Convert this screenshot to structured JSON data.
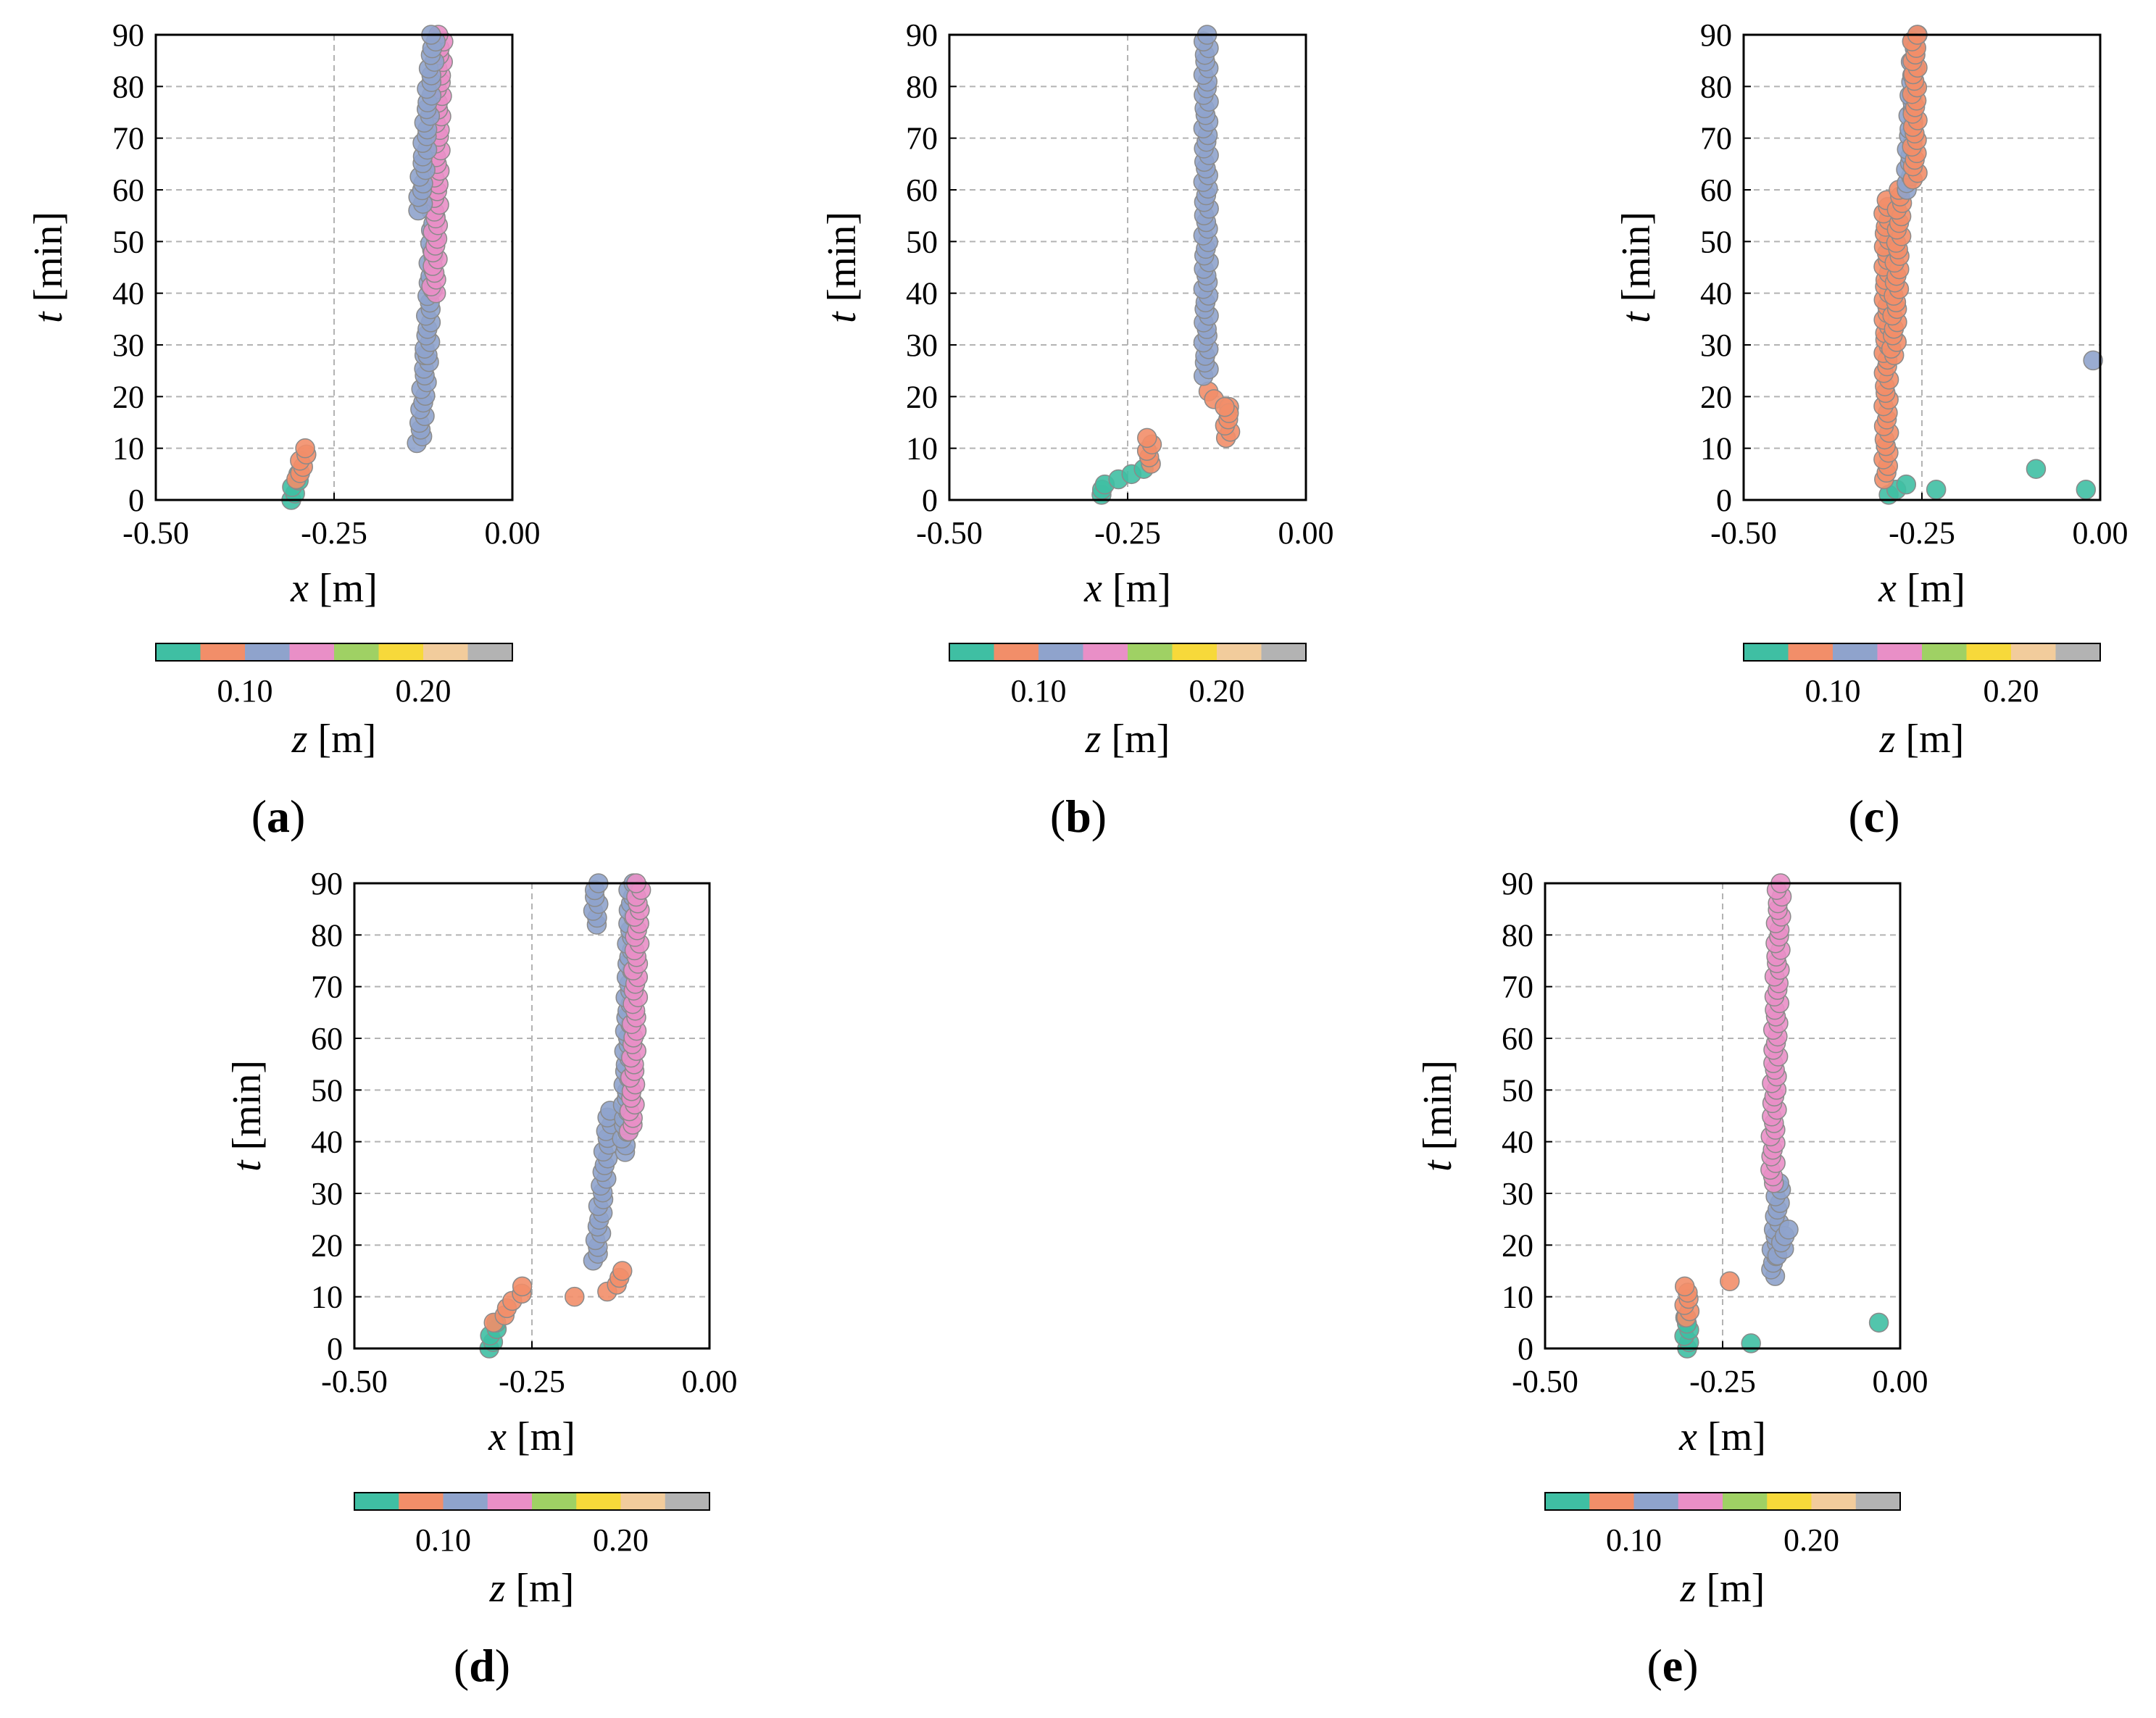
{
  "colorbar": {
    "label_var": "z",
    "label_unit": " [m]",
    "tick_labels": [
      "0.10",
      "0.20"
    ],
    "tick_values": [
      0.1,
      0.2
    ],
    "range": [
      0.05,
      0.25
    ],
    "colors": [
      "#3fbfa3",
      "#f28e69",
      "#8fa3cc",
      "#e98fc7",
      "#9fd164",
      "#f7d93a",
      "#f2cc9c",
      "#b3b3b3"
    ]
  },
  "chart_data": [
    {
      "panel": "a",
      "caption_letter": "a",
      "type": "scatter",
      "xlabel_var": "x",
      "xlabel_unit": " [m]",
      "ylabel_var": "t",
      "ylabel_unit": " [min]",
      "xlim": [
        -0.5,
        0.0
      ],
      "ylim": [
        0,
        90
      ],
      "xticks": [
        "-0.50",
        "-0.25",
        "0.00"
      ],
      "yticks": [
        "0",
        "10",
        "20",
        "30",
        "40",
        "50",
        "60",
        "70",
        "80",
        "90"
      ],
      "grid": true,
      "segments": [
        {
          "x_start": -0.31,
          "x_end": -0.3,
          "t_start": 0,
          "t_end": 5,
          "z_class": 0
        },
        {
          "x_start": -0.3,
          "x_end": -0.29,
          "t_start": 4,
          "t_end": 10,
          "z_class": 1
        },
        {
          "x_start": -0.13,
          "x_end": -0.12,
          "t_start": 11,
          "t_end": 28,
          "z_class": 2
        },
        {
          "x_start": -0.12,
          "x_end": -0.11,
          "t_start": 28,
          "t_end": 56,
          "z_class": 2
        },
        {
          "x_start": -0.11,
          "x_end": -0.1,
          "t_start": 40,
          "t_end": 90,
          "z_class": 3
        },
        {
          "x_start": -0.13,
          "x_end": -0.11,
          "t_start": 56,
          "t_end": 90,
          "z_class": 2
        }
      ]
    },
    {
      "panel": "b",
      "caption_letter": "b",
      "type": "scatter",
      "xlabel_var": "x",
      "xlabel_unit": " [m]",
      "ylabel_var": "t",
      "ylabel_unit": " [min]",
      "xlim": [
        -0.5,
        0.0
      ],
      "ylim": [
        0,
        90
      ],
      "xticks": [
        "-0.50",
        "-0.25",
        "0.00"
      ],
      "yticks": [
        "0",
        "10",
        "20",
        "30",
        "40",
        "50",
        "60",
        "70",
        "80",
        "90"
      ],
      "grid": true,
      "segments": [
        {
          "x_start": -0.29,
          "x_end": -0.28,
          "t_start": 1,
          "t_end": 3,
          "z_class": 0
        },
        {
          "x_start": -0.26,
          "x_end": -0.23,
          "t_start": 4,
          "t_end": 6,
          "z_class": 0
        },
        {
          "x_start": -0.22,
          "x_end": -0.22,
          "t_start": 7,
          "t_end": 12,
          "z_class": 1
        },
        {
          "x_start": -0.14,
          "x_end": -0.11,
          "t_start": 21,
          "t_end": 18,
          "z_class": 1
        },
        {
          "x_start": -0.11,
          "x_end": -0.11,
          "t_start": 12,
          "t_end": 18,
          "z_class": 1
        },
        {
          "x_start": -0.14,
          "x_end": -0.14,
          "t_start": 24,
          "t_end": 90,
          "z_class": 2
        }
      ]
    },
    {
      "panel": "c",
      "caption_letter": "c",
      "type": "scatter",
      "xlabel_var": "x",
      "xlabel_unit": " [m]",
      "ylabel_var": "t",
      "ylabel_unit": " [min]",
      "xlim": [
        -0.5,
        0.0
      ],
      "ylim": [
        0,
        90
      ],
      "xticks": [
        "-0.50",
        "-0.25",
        "0.00"
      ],
      "yticks": [
        "0",
        "10",
        "20",
        "30",
        "40",
        "50",
        "60",
        "70",
        "80",
        "90"
      ],
      "grid": true,
      "segments": [
        {
          "x_start": -0.3,
          "x_end": -0.27,
          "t_start": 1,
          "t_end": 3,
          "z_class": 0
        },
        {
          "x_start": -0.3,
          "x_end": -0.3,
          "t_start": 4,
          "t_end": 58,
          "z_class": 1
        },
        {
          "x_start": -0.29,
          "x_end": -0.28,
          "t_start": 28,
          "t_end": 60,
          "z_class": 1
        },
        {
          "x_start": -0.27,
          "x_end": -0.26,
          "t_start": 60,
          "t_end": 90,
          "z_class": 2
        },
        {
          "x_start": -0.26,
          "x_end": -0.26,
          "t_start": 62,
          "t_end": 90,
          "z_class": 1
        }
      ],
      "points": [
        {
          "x": -0.23,
          "t": 2,
          "z_class": 0
        },
        {
          "x": -0.09,
          "t": 6,
          "z_class": 0
        },
        {
          "x": -0.02,
          "t": 2,
          "z_class": 0
        },
        {
          "x": -0.01,
          "t": 27,
          "z_class": 2
        }
      ]
    },
    {
      "panel": "d",
      "caption_letter": "d",
      "type": "scatter",
      "xlabel_var": "x",
      "xlabel_unit": " [m]",
      "ylabel_var": "t",
      "ylabel_unit": " [min]",
      "xlim": [
        -0.5,
        0.0
      ],
      "ylim": [
        0,
        90
      ],
      "xticks": [
        "-0.50",
        "-0.25",
        "0.00"
      ],
      "yticks": [
        "0",
        "10",
        "20",
        "30",
        "40",
        "50",
        "60",
        "70",
        "80",
        "90"
      ],
      "grid": true,
      "segments": [
        {
          "x_start": -0.31,
          "x_end": -0.3,
          "t_start": 0,
          "t_end": 5,
          "z_class": 0
        },
        {
          "x_start": -0.3,
          "x_end": -0.26,
          "t_start": 5,
          "t_end": 12,
          "z_class": 1
        },
        {
          "x_start": -0.16,
          "x_end": -0.14,
          "t_start": 17,
          "t_end": 46,
          "z_class": 2
        },
        {
          "x_start": -0.14,
          "x_end": -0.12,
          "t_start": 11,
          "t_end": 15,
          "z_class": 1
        },
        {
          "x_start": -0.12,
          "x_end": -0.11,
          "t_start": 38,
          "t_end": 90,
          "z_class": 2
        },
        {
          "x_start": -0.11,
          "x_end": -0.1,
          "t_start": 42,
          "t_end": 90,
          "z_class": 3
        },
        {
          "x_start": -0.16,
          "x_end": -0.16,
          "t_start": 82,
          "t_end": 90,
          "z_class": 2
        }
      ],
      "points": [
        {
          "x": -0.19,
          "t": 10,
          "z_class": 1
        }
      ]
    },
    {
      "panel": "e",
      "caption_letter": "e",
      "type": "scatter",
      "xlabel_var": "x",
      "xlabel_unit": " [m]",
      "ylabel_var": "t",
      "ylabel_unit": " [min]",
      "xlim": [
        -0.5,
        0.0
      ],
      "ylim": [
        0,
        90
      ],
      "xticks": [
        "-0.50",
        "-0.25",
        "0.00"
      ],
      "yticks": [
        "0",
        "10",
        "20",
        "30",
        "40",
        "50",
        "60",
        "70",
        "80",
        "90"
      ],
      "grid": true,
      "segments": [
        {
          "x_start": -0.3,
          "x_end": -0.3,
          "t_start": 0,
          "t_end": 6,
          "z_class": 0
        },
        {
          "x_start": -0.3,
          "x_end": -0.3,
          "t_start": 6,
          "t_end": 12,
          "z_class": 1
        },
        {
          "x_start": -0.18,
          "x_end": -0.17,
          "t_start": 14,
          "t_end": 32,
          "z_class": 2
        },
        {
          "x_start": -0.17,
          "x_end": -0.16,
          "t_start": 18,
          "t_end": 23,
          "z_class": 2
        },
        {
          "x_start": -0.18,
          "x_end": -0.17,
          "t_start": 32,
          "t_end": 90,
          "z_class": 3
        }
      ],
      "points": [
        {
          "x": -0.24,
          "t": 13,
          "z_class": 1
        },
        {
          "x": -0.21,
          "t": 1,
          "z_class": 0
        },
        {
          "x": -0.03,
          "t": 5,
          "z_class": 0
        }
      ]
    }
  ]
}
